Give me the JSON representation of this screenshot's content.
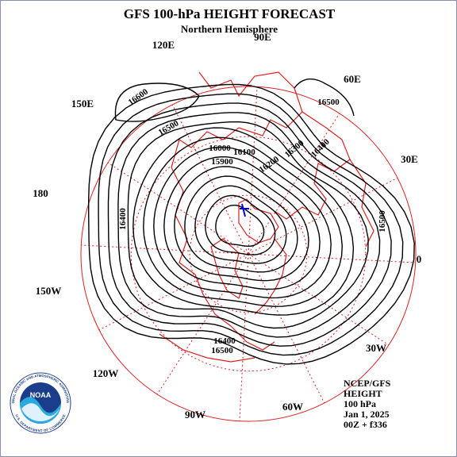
{
  "header": {
    "title": "GFS 100-hPa HEIGHT FORECAST",
    "subtitle": "Northern Hemisphere"
  },
  "longitude_labels": [
    "90E",
    "120E",
    "60E",
    "150E",
    "30E",
    "180",
    "0",
    "150W",
    "30W",
    "120W",
    "90W",
    "60W"
  ],
  "contour_labels": [
    "16600",
    "16500",
    "16500",
    "16000",
    "16100",
    "15900",
    "16300",
    "16200",
    "16400",
    "16400",
    "16500",
    "16400",
    "16500"
  ],
  "info": [
    "NCEP/GFS",
    "HEIGHT",
    "100 hPa",
    "Jan 1, 2025",
    "00Z + f336"
  ],
  "logo": {
    "name": "NOAA",
    "ring_top": "NATIONAL OCEANIC AND ATMOSPHERIC ADMINISTRATION",
    "ring_bottom": "U.S. DEPARTMENT OF COMMERCE"
  }
}
